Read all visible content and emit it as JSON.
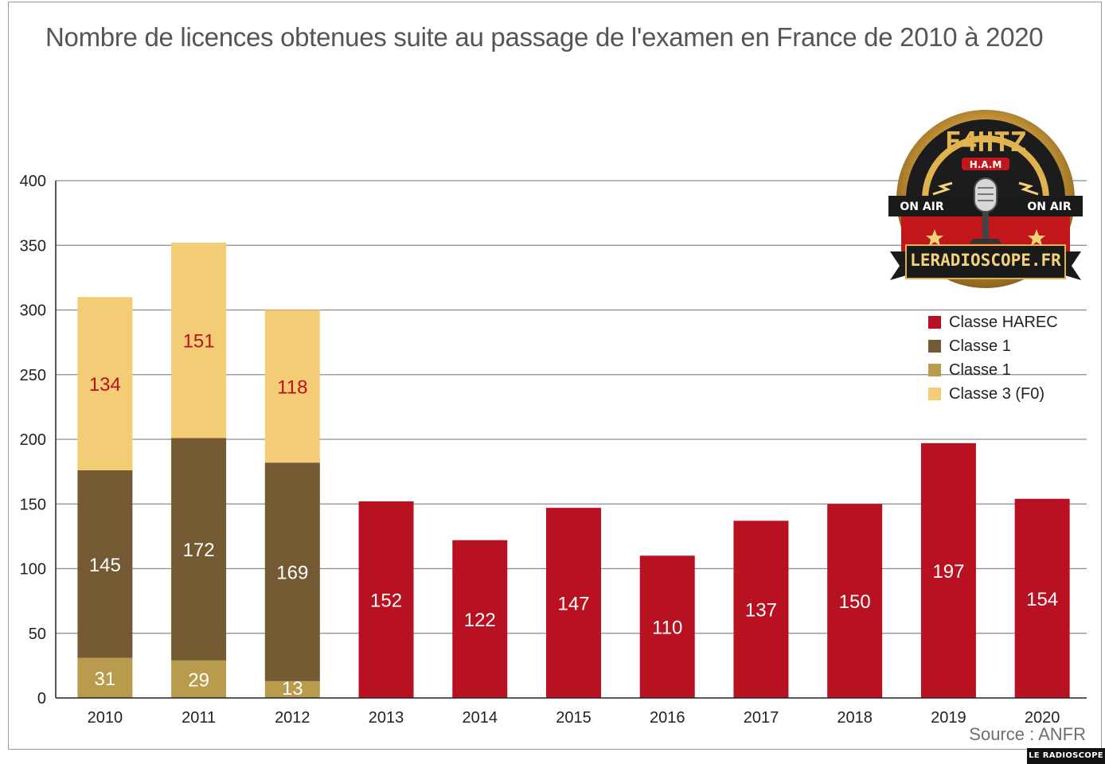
{
  "title": "Nombre de licences obtenues suite au passage de l'examen en France de 2010 à 2020",
  "source": "Source : ANFR",
  "badge": "LE RADIOSCOPE",
  "logo": {
    "callsign": "F4HTZ",
    "tag": "H.A.M",
    "on_air_left": "ON AIR",
    "on_air_right": "ON AIR",
    "banner": "LERADIOSCOPE.FR"
  },
  "legend": [
    {
      "label": "Classe HAREC",
      "color": "#b81121"
    },
    {
      "label": "Classe 1",
      "color": "#735a32"
    },
    {
      "label": "Classe 1",
      "color": "#b99b4d"
    },
    {
      "label": "Classe 3 (F0)",
      "color": "#f3cd76"
    }
  ],
  "colors": {
    "harec": "#b81121",
    "classe1_dark": "#735a32",
    "classe1_gold": "#b99b4d",
    "classe3": "#f3cd76",
    "label_red": "#b81121",
    "label_white": "#ffffff",
    "grid": "#8c8c8c"
  },
  "chart_data": {
    "type": "bar",
    "stacked": true,
    "categories": [
      "2010",
      "2011",
      "2012",
      "2013",
      "2014",
      "2015",
      "2016",
      "2017",
      "2018",
      "2019",
      "2020"
    ],
    "ylim": [
      0,
      400
    ],
    "yticks": [
      0,
      50,
      100,
      150,
      200,
      250,
      300,
      350,
      400
    ],
    "grid": true,
    "legend_position": "right",
    "series": [
      {
        "key": "gold",
        "values": [
          31,
          29,
          13,
          null,
          null,
          null,
          null,
          null,
          null,
          null,
          null
        ],
        "color": "#b99b4d",
        "label_color": "#ffffff"
      },
      {
        "key": "dark",
        "values": [
          145,
          172,
          169,
          null,
          null,
          null,
          null,
          null,
          null,
          null,
          null
        ],
        "color": "#735a32",
        "label_color": "#ffffff"
      },
      {
        "key": "f0",
        "values": [
          134,
          151,
          118,
          null,
          null,
          null,
          null,
          null,
          null,
          null,
          null
        ],
        "color": "#f3cd76",
        "label_color": "#b81121"
      },
      {
        "key": "harec",
        "values": [
          null,
          null,
          null,
          152,
          122,
          147,
          110,
          137,
          150,
          197,
          154
        ],
        "color": "#b81121",
        "label_color": "#ffffff"
      }
    ]
  }
}
